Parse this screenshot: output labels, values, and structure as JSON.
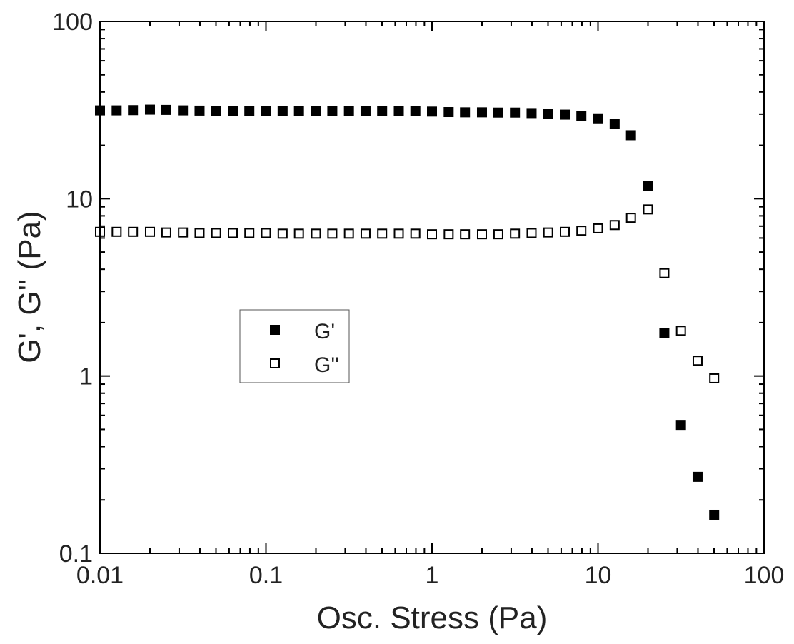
{
  "chart_data": {
    "type": "scatter",
    "title": "",
    "xlabel": "Osc. Stress (Pa)",
    "ylabel": "G', G'' (Pa)",
    "x_scale": "log",
    "y_scale": "log",
    "xlim": [
      0.01,
      100
    ],
    "ylim": [
      0.1,
      100
    ],
    "x_ticks": [
      {
        "value": 0.01,
        "label": "0.01"
      },
      {
        "value": 0.1,
        "label": "0.1"
      },
      {
        "value": 1,
        "label": "1"
      },
      {
        "value": 10,
        "label": "10"
      },
      {
        "value": 100,
        "label": "100"
      }
    ],
    "y_ticks": [
      {
        "value": 0.1,
        "label": "0.1"
      },
      {
        "value": 1,
        "label": "1"
      },
      {
        "value": 10,
        "label": "10"
      },
      {
        "value": 100,
        "label": "100"
      }
    ],
    "grid": false,
    "legend": {
      "placement": "center-left"
    },
    "series": [
      {
        "name": "G'",
        "marker": "filled-square",
        "color": "#000000",
        "x": [
          0.01,
          0.0126,
          0.0158,
          0.02,
          0.0251,
          0.0316,
          0.0398,
          0.0501,
          0.0631,
          0.0794,
          0.1,
          0.126,
          0.158,
          0.2,
          0.251,
          0.316,
          0.398,
          0.501,
          0.631,
          0.794,
          1,
          1.26,
          1.58,
          2,
          2.51,
          3.16,
          3.98,
          5.01,
          6.31,
          7.94,
          10,
          12.6,
          15.8,
          20,
          25.1,
          31.6,
          39.8,
          50.1
        ],
        "y": [
          31.5,
          31.5,
          31.6,
          31.8,
          31.7,
          31.5,
          31.4,
          31.3,
          31.3,
          31.2,
          31.2,
          31.2,
          31.1,
          31.1,
          31.1,
          31.1,
          31.1,
          31.2,
          31.3,
          31.1,
          31.0,
          30.8,
          30.7,
          30.7,
          30.6,
          30.6,
          30.4,
          30.1,
          29.8,
          29.3,
          28.4,
          26.5,
          22.8,
          11.8,
          1.75,
          0.53,
          0.27,
          0.165
        ]
      },
      {
        "name": "G''",
        "marker": "open-square",
        "color": "#000000",
        "x": [
          0.01,
          0.0126,
          0.0158,
          0.02,
          0.0251,
          0.0316,
          0.0398,
          0.0501,
          0.0631,
          0.0794,
          0.1,
          0.126,
          0.158,
          0.2,
          0.251,
          0.316,
          0.398,
          0.501,
          0.631,
          0.794,
          1,
          1.26,
          1.58,
          2,
          2.51,
          3.16,
          3.98,
          5.01,
          6.31,
          7.94,
          10,
          12.6,
          15.8,
          20,
          25.1,
          31.6,
          39.8,
          50.1
        ],
        "y": [
          6.5,
          6.5,
          6.5,
          6.5,
          6.45,
          6.45,
          6.4,
          6.4,
          6.4,
          6.4,
          6.4,
          6.35,
          6.35,
          6.35,
          6.35,
          6.35,
          6.35,
          6.35,
          6.35,
          6.35,
          6.3,
          6.3,
          6.3,
          6.3,
          6.3,
          6.35,
          6.4,
          6.45,
          6.5,
          6.6,
          6.8,
          7.1,
          7.8,
          8.7,
          3.8,
          1.8,
          1.22,
          0.97
        ]
      }
    ]
  }
}
